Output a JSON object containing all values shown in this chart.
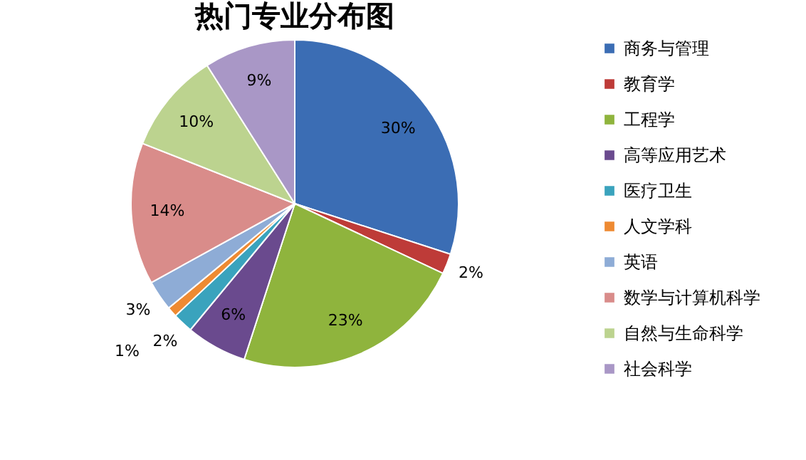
{
  "chart_data": {
    "type": "pie",
    "title": "热门专业分布图",
    "categories": [
      "商务与管理",
      "教育学",
      "工程学",
      "高等应用艺术",
      "医疗卫生",
      "人文学科",
      "英语",
      "数学与计算机科学",
      "自然与生命科学",
      "社会科学"
    ],
    "values": [
      30,
      2,
      23,
      6,
      2,
      1,
      3,
      14,
      10,
      9
    ],
    "colors": [
      "#3b6db4",
      "#be3b38",
      "#8fb43d",
      "#6a4a8e",
      "#3aa3bd",
      "#ee8a32",
      "#8eacd6",
      "#d98c8a",
      "#bcd38f",
      "#a997c6"
    ],
    "value_labels": [
      "30%",
      "2%",
      "23%",
      "6%",
      "2%",
      "1%",
      "3%",
      "14%",
      "10%",
      "9%"
    ],
    "legend": "right"
  }
}
